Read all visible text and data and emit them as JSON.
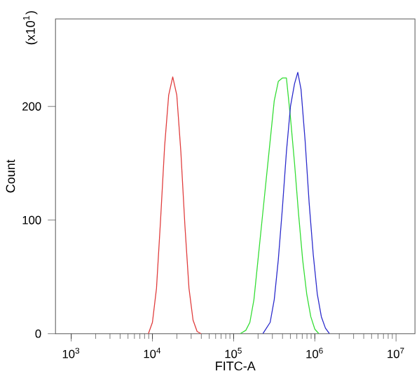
{
  "chart_data": {
    "type": "line",
    "xlabel": "FITC-A",
    "ylabel": "Count",
    "annotations": [
      "(x10$^{1}$)"
    ],
    "log": "x",
    "xlim": [
      640,
      17100000
    ],
    "ylim": [
      0,
      277
    ],
    "xticks": [
      {
        "value": 1000,
        "label": "10$^{3}$"
      },
      {
        "value": 10000,
        "label": "10$^{4}$"
      },
      {
        "value": 100000,
        "label": "10$^{5}$"
      },
      {
        "value": 1000000,
        "label": "10$^{6}$"
      },
      {
        "value": 10000000,
        "label": "10$^{7}$"
      }
    ],
    "yticks": [
      0,
      100,
      200
    ],
    "grid": false,
    "marker": "none",
    "line_style": "solid",
    "series": [
      {
        "color": "#e03c3c",
        "x": [
          8913,
          10000,
          11220,
          12589,
          14125,
          15849,
          17783,
          19953,
          22387,
          25119,
          28184,
          31623,
          35481,
          39811
        ],
        "values": [
          0,
          10,
          40,
          100,
          165,
          210,
          226,
          210,
          160,
          95,
          40,
          12,
          2,
          0
        ]
      },
      {
        "color": "#33dd33",
        "x": [
          120226,
          141254,
          158489,
          177828,
          199526,
          223872,
          251189,
          281838,
          316228,
          354813,
          398107,
          446684,
          501187,
          562341,
          630957,
          707946,
          794328,
          891251,
          1000000,
          1122018
        ],
        "values": [
          0,
          3,
          10,
          30,
          65,
          100,
          135,
          170,
          205,
          222,
          225,
          225,
          190,
          150,
          105,
          65,
          35,
          15,
          4,
          0
        ]
      },
      {
        "color": "#2a2acc",
        "x": [
          229087,
          281838,
          316228,
          354813,
          398107,
          446684,
          501187,
          562341,
          616595,
          676083,
          758578,
          851138,
          954993,
          1071519,
          1202264,
          1348963,
          1513561
        ],
        "values": [
          0,
          10,
          30,
          65,
          110,
          160,
          200,
          220,
          230,
          215,
          170,
          115,
          70,
          35,
          15,
          5,
          0
        ]
      }
    ]
  }
}
